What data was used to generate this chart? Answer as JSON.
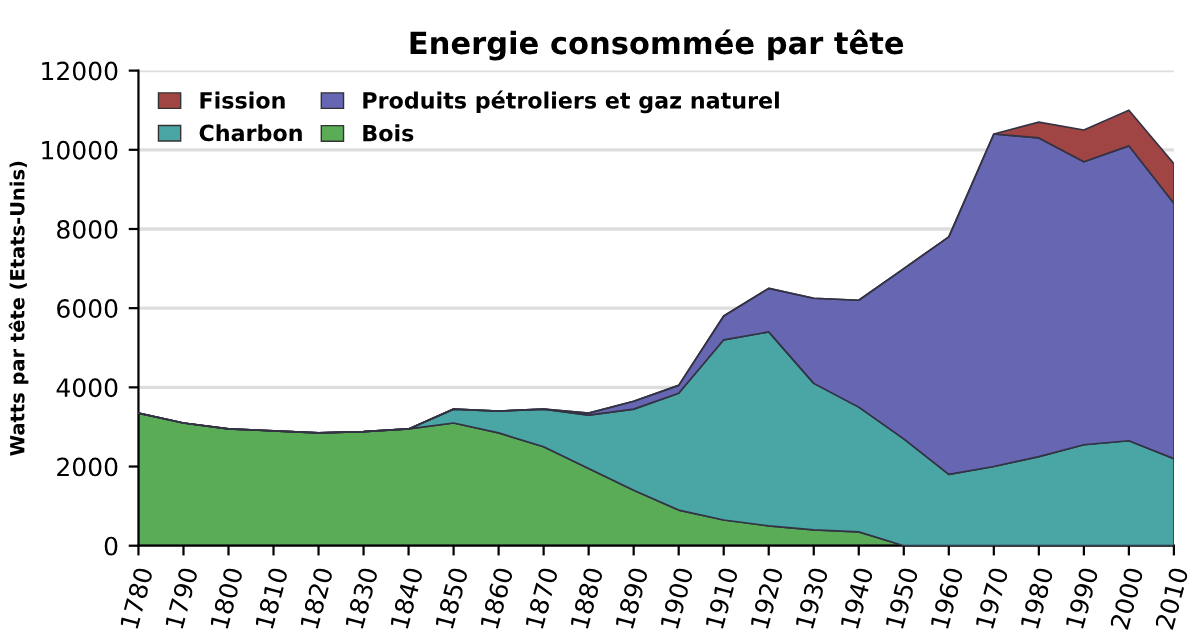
{
  "chart_data": {
    "type": "area",
    "stacked": true,
    "title": "Energie consommée par tête",
    "ylabel": "Watts par tête (Etats-Unis)",
    "x": [
      1780,
      1790,
      1800,
      1810,
      1820,
      1830,
      1840,
      1850,
      1860,
      1870,
      1880,
      1890,
      1900,
      1910,
      1920,
      1930,
      1940,
      1950,
      1960,
      1970,
      1980,
      1990,
      2000,
      2010
    ],
    "series": [
      {
        "name": "Bois",
        "color": "#5aac56",
        "values": [
          3350,
          3100,
          2950,
          2900,
          2850,
          2880,
          2950,
          3100,
          2850,
          2500,
          1950,
          1400,
          900,
          650,
          500,
          400,
          350,
          0,
          0,
          0,
          0,
          0,
          0,
          0
        ]
      },
      {
        "name": "Charbon",
        "color": "#4aa5a5",
        "values": [
          0,
          0,
          0,
          0,
          0,
          0,
          0,
          350,
          550,
          950,
          1350,
          2050,
          2950,
          4550,
          4900,
          3700,
          3150,
          2700,
          1800,
          2000,
          2250,
          2550,
          2650,
          2200
        ]
      },
      {
        "name": "Produits pétroliers et gaz naturel",
        "color": "#6666b3",
        "values": [
          0,
          0,
          0,
          0,
          0,
          0,
          0,
          0,
          0,
          0,
          50,
          200,
          200,
          600,
          1100,
          2150,
          2700,
          4300,
          6000,
          8400,
          8050,
          7150,
          7450,
          6450
        ]
      },
      {
        "name": "Fission",
        "color": "#a04444",
        "values": [
          0,
          0,
          0,
          0,
          0,
          0,
          0,
          0,
          0,
          0,
          0,
          0,
          0,
          0,
          0,
          0,
          0,
          0,
          0,
          0,
          400,
          800,
          900,
          1000
        ]
      }
    ],
    "xlim": [
      1780,
      2010
    ],
    "xticks": [
      1780,
      1790,
      1800,
      1810,
      1820,
      1830,
      1840,
      1850,
      1860,
      1870,
      1880,
      1890,
      1900,
      1910,
      1920,
      1930,
      1940,
      1950,
      1960,
      1970,
      1980,
      1990,
      2000,
      2010
    ],
    "ylim": [
      0,
      12000
    ],
    "yticks": [
      0,
      2000,
      4000,
      6000,
      8000,
      10000,
      12000
    ],
    "grid": "y",
    "legend": "top left"
  }
}
